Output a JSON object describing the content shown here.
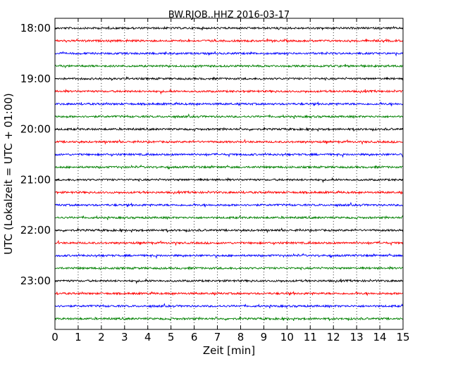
{
  "chart_data": {
    "type": "line",
    "title": "BW.RJOB..HHZ 2016-03-17",
    "xlabel": "Zeit  [min]",
    "ylabel": "UTC (Lokalzeit = UTC + 01:00)",
    "xlim": [
      0,
      15
    ],
    "x_ticks": [
      "0",
      "1",
      "2",
      "3",
      "4",
      "5",
      "6",
      "7",
      "8",
      "9",
      "10",
      "11",
      "12",
      "13",
      "14",
      "15"
    ],
    "y_tick_labels": [
      "18:00",
      "19:00",
      "20:00",
      "21:00",
      "22:00",
      "23:00"
    ],
    "grid": "vertical dotted",
    "trace_colors": [
      "#000000",
      "#ff0000",
      "#0000ff",
      "#008000"
    ],
    "traces": [
      {
        "start": "18:00",
        "color": "#000000"
      },
      {
        "start": "18:15",
        "color": "#ff0000"
      },
      {
        "start": "18:30",
        "color": "#0000ff"
      },
      {
        "start": "18:45",
        "color": "#008000"
      },
      {
        "start": "19:00",
        "color": "#000000"
      },
      {
        "start": "19:15",
        "color": "#ff0000"
      },
      {
        "start": "19:30",
        "color": "#0000ff"
      },
      {
        "start": "19:45",
        "color": "#008000"
      },
      {
        "start": "20:00",
        "color": "#000000"
      },
      {
        "start": "20:15",
        "color": "#ff0000"
      },
      {
        "start": "20:30",
        "color": "#0000ff"
      },
      {
        "start": "20:45",
        "color": "#008000"
      },
      {
        "start": "21:00",
        "color": "#000000"
      },
      {
        "start": "21:15",
        "color": "#ff0000"
      },
      {
        "start": "21:30",
        "color": "#0000ff"
      },
      {
        "start": "21:45",
        "color": "#008000"
      },
      {
        "start": "22:00",
        "color": "#000000"
      },
      {
        "start": "22:15",
        "color": "#ff0000"
      },
      {
        "start": "22:30",
        "color": "#0000ff"
      },
      {
        "start": "22:45",
        "color": "#008000"
      },
      {
        "start": "23:00",
        "color": "#000000"
      },
      {
        "start": "23:15",
        "color": "#ff0000"
      },
      {
        "start": "23:30",
        "color": "#0000ff"
      },
      {
        "start": "23:45",
        "color": "#008000"
      }
    ]
  }
}
